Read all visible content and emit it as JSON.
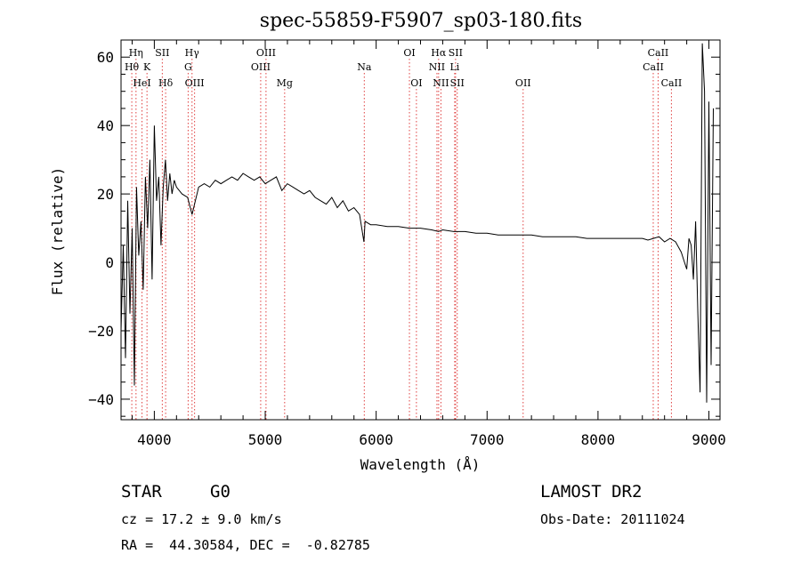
{
  "chart_data": {
    "type": "line",
    "title": "spec-55859-F5907_sp03-180.fits",
    "xlabel": "Wavelength (Å)",
    "ylabel": "Flux (relative)",
    "xlim": [
      3700,
      9100
    ],
    "ylim": [
      -46,
      65
    ],
    "xticks": [
      4000,
      5000,
      6000,
      7000,
      8000,
      9000
    ],
    "yticks": [
      -40,
      -20,
      0,
      20,
      40,
      60
    ],
    "series": [
      {
        "x": [
          3700,
          3720,
          3740,
          3760,
          3780,
          3800,
          3820,
          3840,
          3860,
          3880,
          3900,
          3920,
          3940,
          3960,
          3980,
          4000,
          4020,
          4040,
          4060,
          4080,
          4100,
          4120,
          4140,
          4160,
          4180,
          4200,
          4250,
          4300,
          4340,
          4400,
          4450,
          4500,
          4550,
          4600,
          4650,
          4700,
          4750,
          4800,
          4850,
          4900,
          4950,
          5000,
          5050,
          5100,
          5150,
          5200,
          5250,
          5300,
          5350,
          5400,
          5450,
          5500,
          5550,
          5600,
          5650,
          5700,
          5750,
          5800,
          5850,
          5890,
          5900,
          5950,
          6000,
          6100,
          6200,
          6300,
          6400,
          6500,
          6563,
          6600,
          6700,
          6800,
          6900,
          7000,
          7100,
          7200,
          7300,
          7400,
          7500,
          7600,
          7700,
          7800,
          7900,
          8000,
          8100,
          8200,
          8300,
          8400,
          8450,
          8500,
          8550,
          8600,
          8650,
          8700,
          8750,
          8780,
          8800,
          8820,
          8840,
          8860,
          8880,
          8900,
          8920,
          8940,
          8960,
          8980,
          9000,
          9020,
          9040
        ],
        "y": [
          -20,
          5,
          -28,
          18,
          -15,
          10,
          -36,
          22,
          2,
          12,
          -8,
          25,
          10,
          30,
          -5,
          40,
          18,
          25,
          5,
          22,
          30,
          18,
          26,
          20,
          24,
          22,
          20,
          19,
          14,
          22,
          23,
          22,
          24,
          23,
          24,
          25,
          24,
          26,
          25,
          24,
          25,
          23,
          24,
          25,
          21,
          23,
          22,
          21,
          20,
          21,
          19,
          18,
          17,
          19,
          16,
          18,
          15,
          16,
          14,
          6,
          12,
          11,
          11,
          10.5,
          10.5,
          10,
          10,
          9.5,
          9,
          9.5,
          9,
          9,
          8.5,
          8.5,
          8,
          8,
          8,
          8,
          7.5,
          7.5,
          7.5,
          7.5,
          7,
          7,
          7,
          7,
          7,
          7,
          6.5,
          7,
          7.5,
          6,
          7,
          6,
          3,
          0,
          -2,
          7,
          5,
          -5,
          12,
          -15,
          -38,
          64,
          50,
          -41,
          47,
          -30,
          45
        ]
      }
    ],
    "line_markers": [
      {
        "label": "Hη",
        "x": 3835,
        "row": 1
      },
      {
        "label": "Hθ",
        "x": 3797,
        "row": 2
      },
      {
        "label": "K",
        "x": 3934,
        "row": 2
      },
      {
        "label": "HeI",
        "x": 3889,
        "row": 3
      },
      {
        "label": "SII",
        "x": 4072,
        "row": 1
      },
      {
        "label": "Hδ",
        "x": 4102,
        "row": 3
      },
      {
        "label": "Hγ",
        "x": 4340,
        "row": 1
      },
      {
        "label": "G",
        "x": 4305,
        "row": 2
      },
      {
        "label": "OIII",
        "x": 4363,
        "row": 3
      },
      {
        "label": "OIII",
        "x": 5007,
        "row": 1
      },
      {
        "label": "OIII",
        "x": 4959,
        "row": 2
      },
      {
        "label": "Mg",
        "x": 5175,
        "row": 3
      },
      {
        "label": "Na",
        "x": 5893,
        "row": 2
      },
      {
        "label": "OI",
        "x": 6300,
        "row": 1
      },
      {
        "label": "OI",
        "x": 6363,
        "row": 3
      },
      {
        "label": "Hα",
        "x": 6563,
        "row": 1
      },
      {
        "label": "SII",
        "x": 6716,
        "row": 1
      },
      {
        "label": "NII",
        "x": 6548,
        "row": 2
      },
      {
        "label": "Li",
        "x": 6708,
        "row": 2
      },
      {
        "label": "NII",
        "x": 6584,
        "row": 3
      },
      {
        "label": "SII",
        "x": 6731,
        "row": 3
      },
      {
        "label": "OII",
        "x": 7325,
        "row": 3
      },
      {
        "label": "CaII",
        "x": 8542,
        "row": 1
      },
      {
        "label": "CaII",
        "x": 8498,
        "row": 2
      },
      {
        "label": "CaII",
        "x": 8662,
        "row": 3
      }
    ]
  },
  "footer": {
    "object_class": "STAR",
    "subclass": "G0",
    "redshift": "cz = 17.2 ± 9.0 km/s",
    "coords": "RA =  44.30584, DEC =  -0.82785",
    "survey": "LAMOST DR2",
    "obs_date": "Obs-Date: 20111024"
  }
}
